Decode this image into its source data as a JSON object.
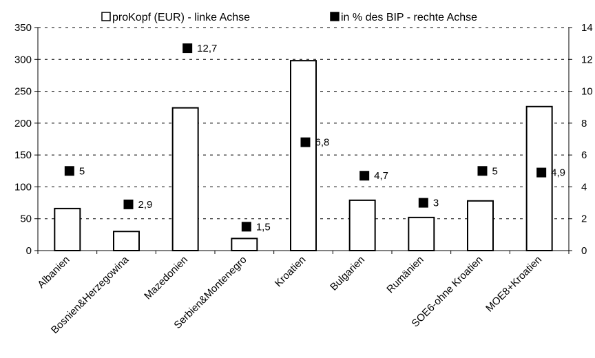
{
  "chart_data": {
    "type": "bar",
    "categories": [
      "Albanien",
      "Bosnien&Herzegowina",
      "Mazedonien",
      "Serbien&Montenegro",
      "Kroatien",
      "Bulgarien",
      "Rumänien",
      "SOE6-ohne Kroatien",
      "MOE8+Kroatien"
    ],
    "series": [
      {
        "name": "proKopf (EUR) - linke Achse",
        "type": "bar",
        "axis": "left",
        "values": [
          66,
          30,
          224,
          19,
          298,
          79,
          52,
          78,
          226
        ],
        "color": "#ffffff",
        "stroke": "#000000"
      },
      {
        "name": "in % des BIP - rechte Achse",
        "type": "scatter",
        "axis": "right",
        "values": [
          5,
          2.9,
          12.7,
          1.5,
          6.8,
          4.7,
          3,
          5,
          4.9
        ],
        "value_labels": [
          "5",
          "2,9",
          "12,7",
          "1,5",
          "6,8",
          "4,7",
          "3",
          "5",
          "4,9"
        ],
        "color": "#000000"
      }
    ],
    "left_axis": {
      "ylim": [
        0,
        350
      ],
      "ticks": [
        "0",
        "50",
        "100",
        "150",
        "200",
        "250",
        "300",
        "350"
      ]
    },
    "right_axis": {
      "ylim": [
        0,
        14
      ],
      "ticks": [
        "0",
        "2",
        "4",
        "6",
        "8",
        "10",
        "12",
        "14"
      ]
    },
    "grid": "horizontal-dashed",
    "legend_position": "top"
  }
}
